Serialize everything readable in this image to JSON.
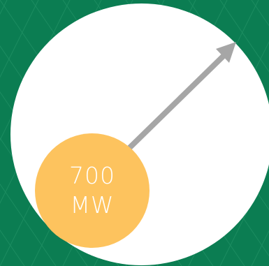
{
  "colors": {
    "background": "#0b7d52",
    "pattern_lines": "#2a9a6d",
    "circle": "#ffffff",
    "arrow": "#a6a6a6",
    "badge": "#fdc35e",
    "badge_text": "#ffffff"
  },
  "badge": {
    "value": "700",
    "unit": "MW"
  },
  "arrow_icon": "arrow-up-right"
}
